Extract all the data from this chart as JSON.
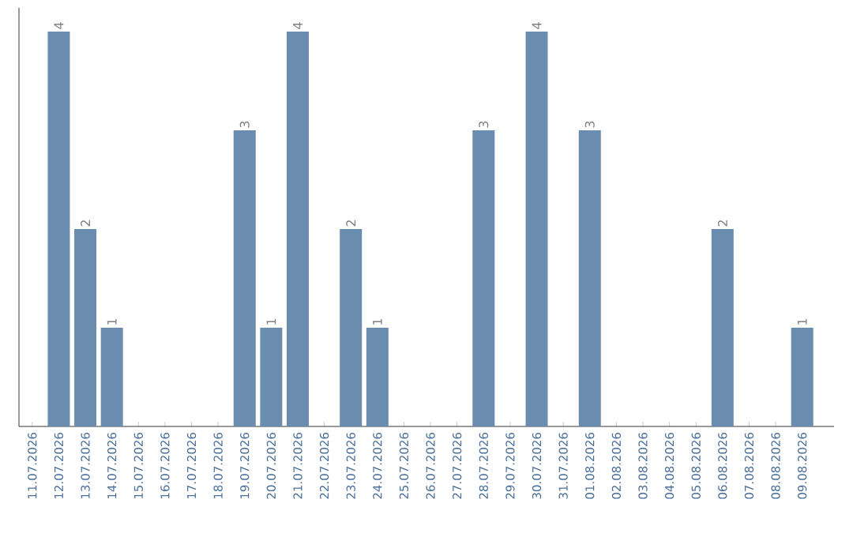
{
  "chart_data": {
    "type": "bar",
    "categories": [
      "11.07.2026",
      "12.07.2026",
      "13.07.2026",
      "14.07.2026",
      "15.07.2026",
      "16.07.2026",
      "17.07.2026",
      "18.07.2026",
      "19.07.2026",
      "20.07.2026",
      "21.07.2026",
      "22.07.2026",
      "23.07.2026",
      "24.07.2026",
      "25.07.2026",
      "26.07.2026",
      "27.07.2026",
      "28.07.2026",
      "29.07.2026",
      "30.07.2026",
      "31.07.2026",
      "01.08.2026",
      "02.08.2026",
      "03.08.2026",
      "04.08.2026",
      "05.08.2026",
      "06.08.2026",
      "07.08.2026",
      "08.08.2026",
      "09.08.2026"
    ],
    "values": [
      0,
      4,
      2,
      1,
      0,
      0,
      0,
      0,
      3,
      1,
      4,
      0,
      2,
      1,
      0,
      0,
      0,
      3,
      0,
      4,
      0,
      3,
      0,
      0,
      0,
      0,
      2,
      0,
      0,
      1
    ],
    "value_labels": [
      null,
      "4",
      "2",
      "1",
      null,
      null,
      null,
      null,
      "3",
      "1",
      "4",
      null,
      "2",
      "1",
      null,
      null,
      null,
      "3",
      null,
      "4",
      null,
      "3",
      null,
      null,
      null,
      null,
      "2",
      null,
      null,
      "1"
    ],
    "color": "#6a8caf",
    "ylim": [
      0,
      4.24
    ],
    "tick_labels": "x"
  }
}
